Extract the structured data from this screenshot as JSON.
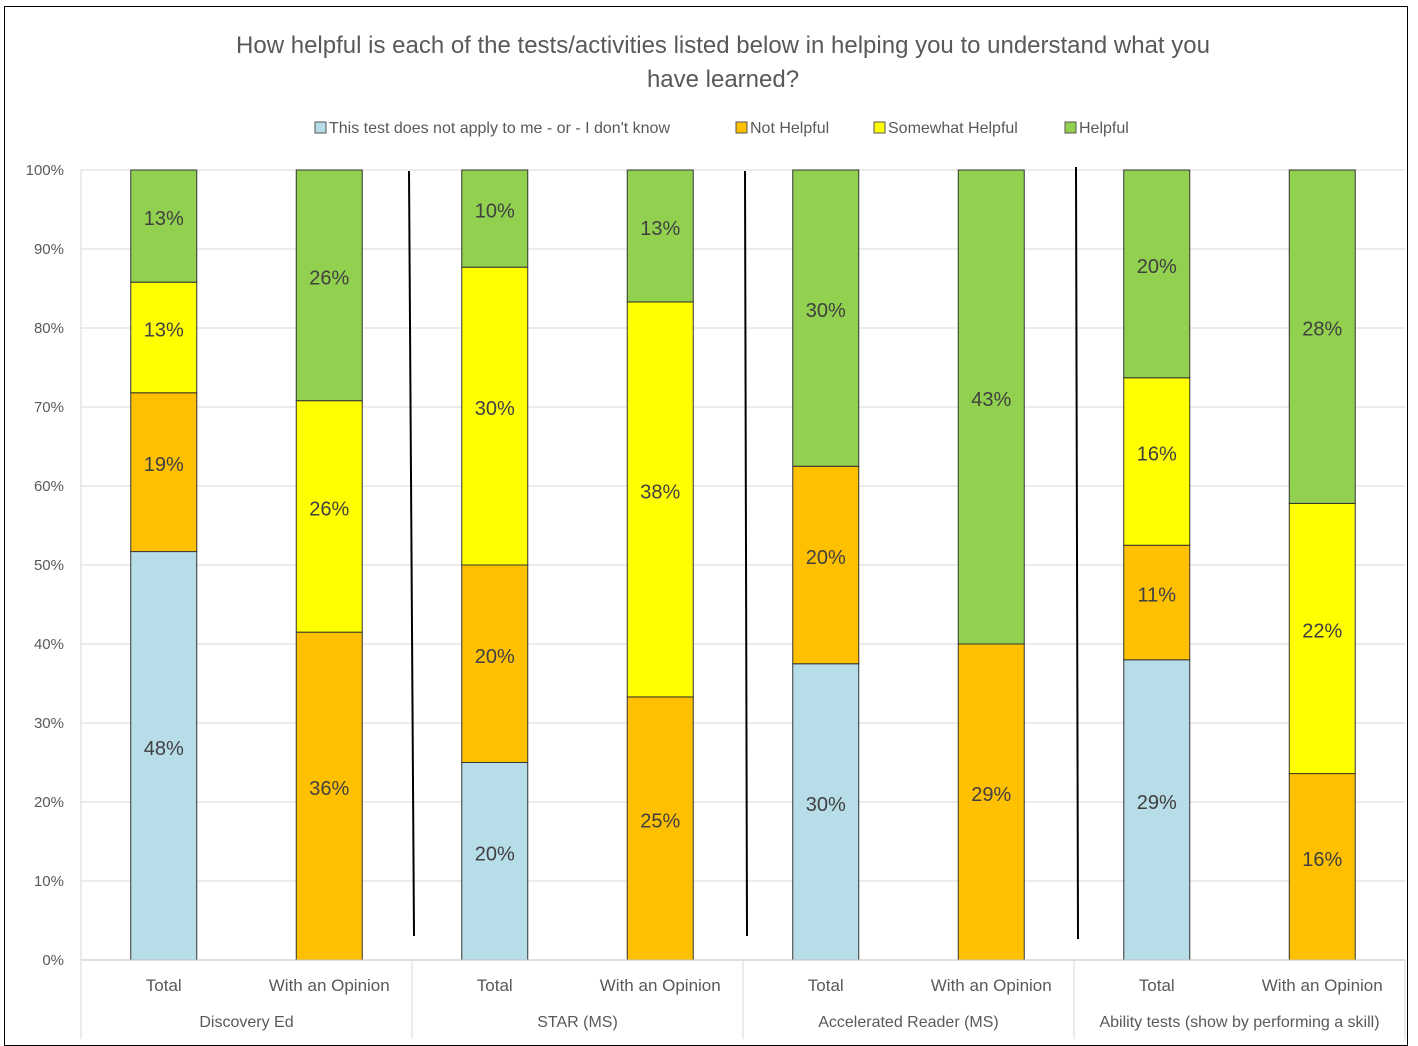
{
  "chart_data": {
    "type": "bar",
    "stacked": true,
    "percent_stacked": true,
    "title": "How helpful is each of the tests/activities listed below in helping you to understand what you have learned?",
    "title_lines": [
      "How helpful is each of the tests/activities listed below in helping you to understand what you",
      "have learned?"
    ],
    "legend_position": "top",
    "grid": true,
    "ylim": [
      0,
      100
    ],
    "y_ticks": [
      "0%",
      "10%",
      "20%",
      "30%",
      "40%",
      "50%",
      "60%",
      "70%",
      "80%",
      "90%",
      "100%"
    ],
    "groups": [
      "Discovery Ed",
      "STAR (MS)",
      "Accelerated Reader (MS)",
      "Ability tests (show by performing a skill)"
    ],
    "categories": [
      "Total",
      "With an Opinion",
      "Total",
      "With an Opinion",
      "Total",
      "With an Opinion",
      "Total",
      "With an Opinion"
    ],
    "series": [
      {
        "name": "This test does not apply to me - or - I don't know",
        "color": "#b7dde8",
        "values": [
          51.7,
          0,
          25.0,
          0,
          37.5,
          0,
          38.0,
          0
        ],
        "labels": [
          "48%",
          "",
          "20%",
          "",
          "30%",
          "",
          "29%",
          ""
        ]
      },
      {
        "name": "Not Helpful",
        "color": "#ffc000",
        "values": [
          20.1,
          41.5,
          25.0,
          33.3,
          25.0,
          40.0,
          14.5,
          23.6
        ],
        "labels": [
          "19%",
          "36%",
          "20%",
          "25%",
          "20%",
          "29%",
          "11%",
          "16%"
        ]
      },
      {
        "name": "Somewhat Helpful",
        "color": "#ffff00",
        "values": [
          14.0,
          29.3,
          37.7,
          50.0,
          0,
          0,
          21.2,
          34.2
        ],
        "labels": [
          "13%",
          "26%",
          "30%",
          "38%",
          "",
          "",
          "16%",
          "22%"
        ]
      },
      {
        "name": "Helpful",
        "color": "#92d050",
        "values": [
          14.2,
          29.2,
          12.3,
          16.7,
          37.5,
          60.0,
          26.3,
          42.2
        ],
        "labels": [
          "13%",
          "26%",
          "10%",
          "13%",
          "30%",
          "43%",
          "20%",
          "28%"
        ]
      }
    ]
  }
}
